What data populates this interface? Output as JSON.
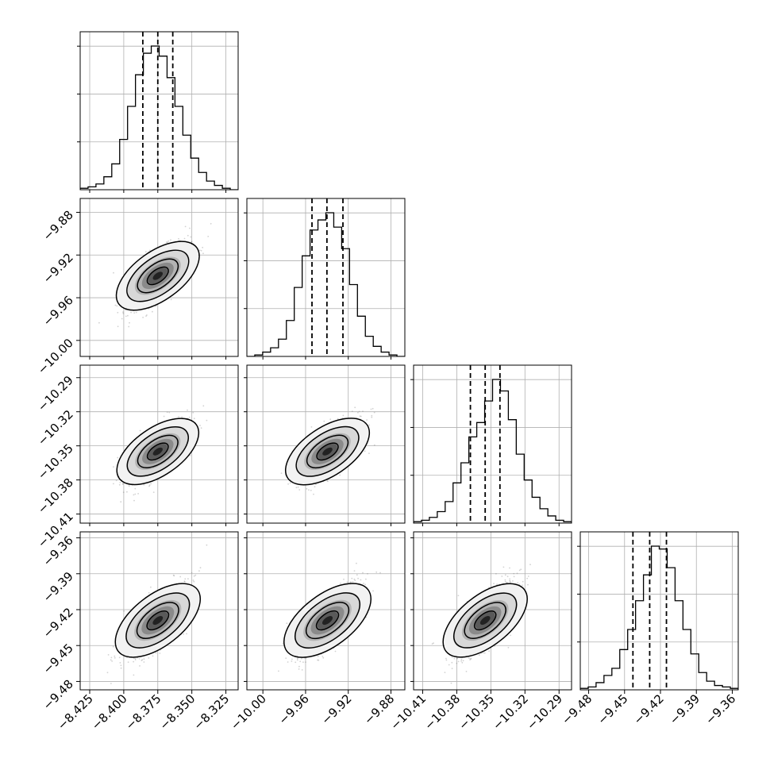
{
  "chart_data": {
    "type": "corner",
    "parameters": [
      {
        "xlim": [
          -8.432,
          -8.316
        ],
        "ticks": [
          -8.425,
          -8.4,
          -8.375,
          -8.35,
          -8.325
        ],
        "tick_labels": [
          "−8.425",
          "−8.400",
          "−8.375",
          "−8.350",
          "−8.325"
        ],
        "quantiles": [
          -8.386,
          -8.375,
          -8.364
        ]
      },
      {
        "xlim": [
          -10.015,
          -9.867
        ],
        "ticks": [
          -10.0,
          -9.96,
          -9.92,
          -9.88
        ],
        "tick_labels": [
          "−10.00",
          "−9.96",
          "−9.92",
          "−9.88"
        ],
        "quantiles": [
          -9.954,
          -9.94,
          -9.925
        ]
      },
      {
        "xlim": [
          -10.418,
          -10.279
        ],
        "ticks": [
          -10.41,
          -10.38,
          -10.35,
          -10.32,
          -10.29
        ],
        "tick_labels": [
          "−10.41",
          "−10.38",
          "−10.35",
          "−10.32",
          "−10.29"
        ],
        "quantiles": [
          -10.368,
          -10.355,
          -10.342
        ]
      },
      {
        "xlim": [
          -9.487,
          -9.355
        ],
        "ticks": [
          -9.48,
          -9.45,
          -9.42,
          -9.39,
          -9.36
        ],
        "tick_labels": [
          "−9.48",
          "−9.45",
          "−9.42",
          "−9.39",
          "−9.36"
        ],
        "quantiles": [
          -9.443,
          -9.429,
          -9.415
        ]
      }
    ],
    "histograms": [
      [
        1,
        2,
        4,
        9,
        18,
        35,
        58,
        80,
        95,
        100,
        93,
        78,
        58,
        38,
        22,
        12,
        6,
        3,
        1,
        0
      ],
      [
        0,
        1,
        3,
        6,
        12,
        25,
        48,
        70,
        88,
        95,
        100,
        90,
        75,
        50,
        28,
        14,
        7,
        3,
        1,
        0
      ],
      [
        1,
        2,
        4,
        8,
        15,
        28,
        42,
        60,
        70,
        85,
        100,
        92,
        72,
        48,
        30,
        18,
        10,
        5,
        2,
        1
      ],
      [
        1,
        2,
        5,
        10,
        15,
        28,
        42,
        62,
        80,
        100,
        98,
        85,
        62,
        42,
        25,
        12,
        6,
        3,
        2,
        1
      ]
    ],
    "contour_levels": [
      "0.5-sigma",
      "1-sigma",
      "1.5-sigma",
      "2-sigma"
    ],
    "colors": {
      "line": "#000000",
      "grid": "#b0b0b0",
      "points": "#7f7f7f"
    },
    "grid": true
  }
}
